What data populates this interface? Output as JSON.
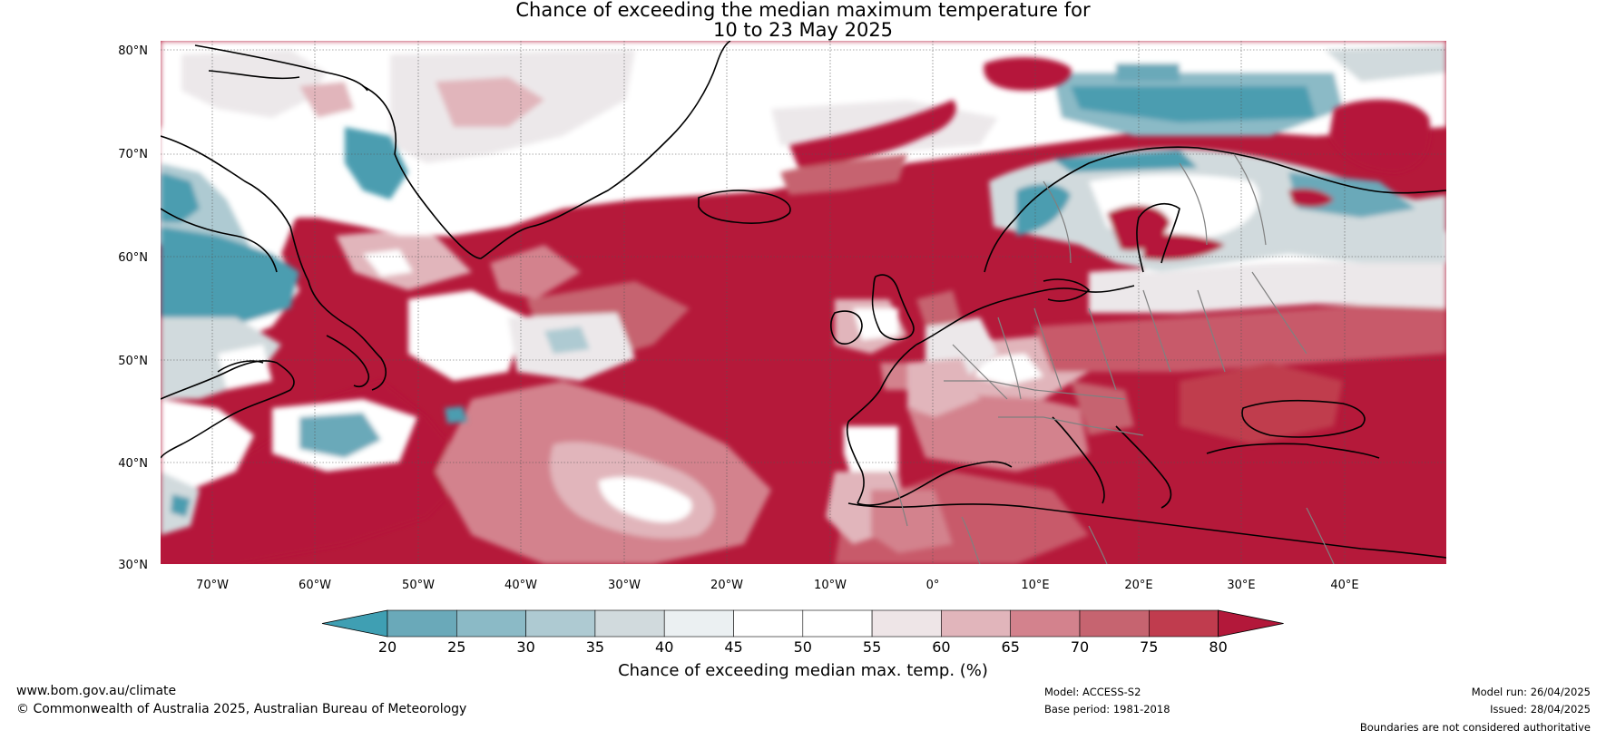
{
  "title": {
    "line1": "Chance of exceeding the median maximum temperature for",
    "line2": "10 to 23 May 2025"
  },
  "map": {
    "lat_labels": [
      "80°N",
      "70°N",
      "60°N",
      "50°N",
      "40°N",
      "30°N"
    ],
    "lon_labels": [
      "70°W",
      "60°W",
      "50°W",
      "40°W",
      "30°W",
      "20°W",
      "10°W",
      "0°",
      "10°E",
      "20°E",
      "30°E",
      "40°E"
    ],
    "ocean_base_color": "#c91f3c",
    "land_line_color": "#000000",
    "border_color": "#808080",
    "regions": {
      "strong_warm": "#b5193a",
      "warm": "#c85a6a",
      "mild_warm": "#dda3ad",
      "neutral_white": "#ffffff",
      "neutral_grey": "#ece8ea",
      "cool_light": "#dbe3e6",
      "cool": "#9ec3cc",
      "strong_cool": "#4c9db0"
    }
  },
  "colorbar": {
    "ticks": [
      "20",
      "25",
      "30",
      "35",
      "40",
      "45",
      "50",
      "55",
      "60",
      "65",
      "70",
      "75",
      "80"
    ],
    "colors": [
      "#3f9fb3",
      "#6aa9b9",
      "#8bbac6",
      "#aecad2",
      "#d1dadd",
      "#ebf0f2",
      "#ffffff",
      "#ffffff",
      "#eee5e7",
      "#e1b5bb",
      "#d3828d",
      "#c66470",
      "#c03c4e",
      "#b3183a"
    ],
    "label": "Chance of exceeding median max. temp. (%)"
  },
  "footer": {
    "url": "www.bom.gov.au/climate",
    "copyright": "© Commonwealth of Australia 2025, Australian Bureau of Meteorology",
    "model": "Model: ACCESS-S2",
    "base_period": "Base period: 1981-2018",
    "model_run": "Model run: 26/04/2025",
    "issued": "Issued: 28/04/2025",
    "disclaimer": "Boundaries are not considered authoritative"
  }
}
